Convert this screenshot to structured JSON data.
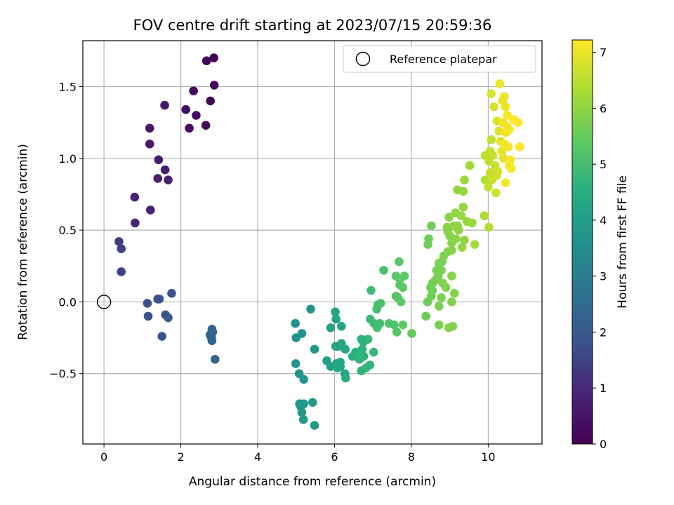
{
  "chart_data": {
    "type": "scatter",
    "title": "FOV centre drift starting at 2023/07/15 20:59:36",
    "xlabel": "Angular distance from reference (arcmin)",
    "ylabel": "Rotation from reference (arcmin)",
    "xlim": [
      -0.55,
      11.4
    ],
    "ylim": [
      -0.99,
      1.82
    ],
    "xticks": [
      0,
      2,
      4,
      6,
      8,
      10
    ],
    "xtick_labels": [
      "0",
      "2",
      "4",
      "6",
      "8",
      "10"
    ],
    "yticks": [
      -0.5,
      0.0,
      0.5,
      1.0,
      1.5
    ],
    "ytick_labels": [
      "−0.5",
      "0.0",
      "0.5",
      "1.0",
      "1.5"
    ],
    "grid": true,
    "legend": {
      "label": "Reference platepar",
      "placement": "top-right",
      "marker": "open-circle"
    },
    "reference_point": {
      "x": 0.0,
      "y": 0.0
    },
    "colorbar": {
      "label": "Hours from first FF file",
      "colormap": "viridis",
      "range": [
        0,
        7.22
      ],
      "ticks": [
        0,
        1,
        2,
        3,
        4,
        5,
        6,
        7
      ],
      "tick_labels": [
        "0",
        "1",
        "2",
        "3",
        "4",
        "5",
        "6",
        "7"
      ]
    },
    "points": [
      {
        "x": 2.67,
        "y": 1.68,
        "c": 0.05
      },
      {
        "x": 2.86,
        "y": 1.7,
        "c": 0.1
      },
      {
        "x": 2.87,
        "y": 1.51,
        "c": 0.15
      },
      {
        "x": 2.33,
        "y": 1.47,
        "c": 0.25
      },
      {
        "x": 2.77,
        "y": 1.4,
        "c": 0.2
      },
      {
        "x": 2.4,
        "y": 1.3,
        "c": 0.3
      },
      {
        "x": 2.13,
        "y": 1.34,
        "c": 0.3
      },
      {
        "x": 2.22,
        "y": 1.21,
        "c": 0.25
      },
      {
        "x": 2.65,
        "y": 1.23,
        "c": 0.2
      },
      {
        "x": 1.58,
        "y": 1.37,
        "c": 0.6
      },
      {
        "x": 1.19,
        "y": 1.21,
        "c": 0.6
      },
      {
        "x": 1.19,
        "y": 1.1,
        "c": 0.65
      },
      {
        "x": 1.42,
        "y": 0.99,
        "c": 0.7
      },
      {
        "x": 1.59,
        "y": 0.92,
        "c": 0.75
      },
      {
        "x": 1.4,
        "y": 0.86,
        "c": 0.75
      },
      {
        "x": 1.67,
        "y": 0.85,
        "c": 0.8
      },
      {
        "x": 0.8,
        "y": 0.73,
        "c": 0.85
      },
      {
        "x": 0.81,
        "y": 0.55,
        "c": 0.9
      },
      {
        "x": 1.21,
        "y": 0.64,
        "c": 0.9
      },
      {
        "x": 0.39,
        "y": 0.42,
        "c": 1.4
      },
      {
        "x": 0.45,
        "y": 0.37,
        "c": 1.45
      },
      {
        "x": 0.45,
        "y": 0.21,
        "c": 1.5
      },
      {
        "x": 1.13,
        "y": -0.01,
        "c": 1.8
      },
      {
        "x": 1.44,
        "y": 0.02,
        "c": 1.8
      },
      {
        "x": 1.4,
        "y": 0.02,
        "c": 1.85
      },
      {
        "x": 1.76,
        "y": 0.06,
        "c": 1.9
      },
      {
        "x": 1.15,
        "y": -0.1,
        "c": 1.85
      },
      {
        "x": 1.6,
        "y": -0.09,
        "c": 1.9
      },
      {
        "x": 1.67,
        "y": -0.11,
        "c": 1.95
      },
      {
        "x": 1.51,
        "y": -0.24,
        "c": 2.0
      },
      {
        "x": 2.81,
        "y": -0.19,
        "c": 2.2
      },
      {
        "x": 2.83,
        "y": -0.21,
        "c": 2.25
      },
      {
        "x": 2.76,
        "y": -0.23,
        "c": 2.3
      },
      {
        "x": 2.8,
        "y": -0.25,
        "c": 2.3
      },
      {
        "x": 2.81,
        "y": -0.27,
        "c": 2.35
      },
      {
        "x": 2.89,
        "y": -0.4,
        "c": 2.4
      },
      {
        "x": 4.98,
        "y": -0.15,
        "c": 3.6
      },
      {
        "x": 5.0,
        "y": -0.25,
        "c": 3.65
      },
      {
        "x": 5.15,
        "y": -0.22,
        "c": 3.65
      },
      {
        "x": 5.38,
        "y": -0.05,
        "c": 3.7
      },
      {
        "x": 5.48,
        "y": -0.33,
        "c": 3.75
      },
      {
        "x": 4.99,
        "y": -0.43,
        "c": 3.7
      },
      {
        "x": 5.08,
        "y": -0.5,
        "c": 3.75
      },
      {
        "x": 5.2,
        "y": -0.54,
        "c": 3.8
      },
      {
        "x": 5.09,
        "y": -0.71,
        "c": 3.8
      },
      {
        "x": 5.12,
        "y": -0.73,
        "c": 3.85
      },
      {
        "x": 5.2,
        "y": -0.71,
        "c": 3.85
      },
      {
        "x": 5.43,
        "y": -0.7,
        "c": 3.9
      },
      {
        "x": 5.15,
        "y": -0.77,
        "c": 3.85
      },
      {
        "x": 5.19,
        "y": -0.82,
        "c": 3.9
      },
      {
        "x": 5.48,
        "y": -0.86,
        "c": 3.9
      },
      {
        "x": 5.8,
        "y": -0.41,
        "c": 4.05
      },
      {
        "x": 5.9,
        "y": -0.45,
        "c": 4.05
      },
      {
        "x": 5.9,
        "y": -0.18,
        "c": 4.1
      },
      {
        "x": 6.02,
        "y": -0.07,
        "c": 4.15
      },
      {
        "x": 6.04,
        "y": -0.12,
        "c": 4.15
      },
      {
        "x": 6.03,
        "y": -0.31,
        "c": 4.2
      },
      {
        "x": 6.1,
        "y": -0.31,
        "c": 4.2
      },
      {
        "x": 6.18,
        "y": -0.29,
        "c": 4.25
      },
      {
        "x": 6.18,
        "y": -0.17,
        "c": 4.2
      },
      {
        "x": 6.28,
        "y": -0.33,
        "c": 4.25
      },
      {
        "x": 6.05,
        "y": -0.43,
        "c": 4.25
      },
      {
        "x": 6.15,
        "y": -0.42,
        "c": 4.3
      },
      {
        "x": 6.15,
        "y": -0.45,
        "c": 4.3
      },
      {
        "x": 6.08,
        "y": -0.46,
        "c": 4.3
      },
      {
        "x": 6.27,
        "y": -0.5,
        "c": 4.3
      },
      {
        "x": 6.29,
        "y": -0.53,
        "c": 4.35
      },
      {
        "x": 6.47,
        "y": -0.38,
        "c": 4.5
      },
      {
        "x": 6.55,
        "y": -0.35,
        "c": 4.55
      },
      {
        "x": 6.7,
        "y": -0.26,
        "c": 4.6
      },
      {
        "x": 6.75,
        "y": -0.28,
        "c": 4.6
      },
      {
        "x": 6.72,
        "y": -0.33,
        "c": 4.6
      },
      {
        "x": 6.67,
        "y": -0.36,
        "c": 4.65
      },
      {
        "x": 6.76,
        "y": -0.38,
        "c": 4.65
      },
      {
        "x": 6.65,
        "y": -0.4,
        "c": 4.7
      },
      {
        "x": 6.7,
        "y": -0.48,
        "c": 4.7
      },
      {
        "x": 6.82,
        "y": -0.46,
        "c": 4.75
      },
      {
        "x": 6.92,
        "y": -0.44,
        "c": 4.75
      },
      {
        "x": 6.87,
        "y": -0.26,
        "c": 4.75
      },
      {
        "x": 7.02,
        "y": -0.35,
        "c": 4.8
      },
      {
        "x": 6.93,
        "y": -0.12,
        "c": 4.9
      },
      {
        "x": 6.95,
        "y": 0.08,
        "c": 4.9
      },
      {
        "x": 7.03,
        "y": -0.15,
        "c": 4.95
      },
      {
        "x": 7.1,
        "y": -0.05,
        "c": 5.0
      },
      {
        "x": 7.13,
        "y": -0.02,
        "c": 5.0
      },
      {
        "x": 7.2,
        "y": -0.01,
        "c": 5.05
      },
      {
        "x": 7.11,
        "y": -0.18,
        "c": 5.0
      },
      {
        "x": 7.18,
        "y": -0.15,
        "c": 5.05
      },
      {
        "x": 7.28,
        "y": 0.22,
        "c": 5.1
      },
      {
        "x": 7.42,
        "y": -0.15,
        "c": 5.2
      },
      {
        "x": 7.55,
        "y": -0.16,
        "c": 5.2
      },
      {
        "x": 7.62,
        "y": -0.21,
        "c": 5.25
      },
      {
        "x": 7.6,
        "y": 0.04,
        "c": 5.3
      },
      {
        "x": 7.65,
        "y": 0.03,
        "c": 5.3
      },
      {
        "x": 7.7,
        "y": 0.12,
        "c": 5.3
      },
      {
        "x": 7.78,
        "y": 0.1,
        "c": 5.35
      },
      {
        "x": 7.6,
        "y": 0.18,
        "c": 5.3
      },
      {
        "x": 7.68,
        "y": 0.28,
        "c": 5.35
      },
      {
        "x": 7.82,
        "y": 0.18,
        "c": 5.4
      },
      {
        "x": 7.7,
        "y": 0.16,
        "c": 5.4
      },
      {
        "x": 7.73,
        "y": 0.0,
        "c": 5.4
      },
      {
        "x": 7.78,
        "y": -0.16,
        "c": 5.4
      },
      {
        "x": 8.01,
        "y": -0.22,
        "c": 5.5
      },
      {
        "x": 8.38,
        "y": -0.1,
        "c": 5.6
      },
      {
        "x": 8.42,
        "y": 0.0,
        "c": 5.6
      },
      {
        "x": 8.52,
        "y": 0.04,
        "c": 5.65
      },
      {
        "x": 8.5,
        "y": 0.1,
        "c": 5.65
      },
      {
        "x": 8.55,
        "y": 0.08,
        "c": 5.65
      },
      {
        "x": 8.55,
        "y": 0.13,
        "c": 5.7
      },
      {
        "x": 8.62,
        "y": 0.15,
        "c": 5.7
      },
      {
        "x": 8.66,
        "y": 0.22,
        "c": 5.7
      },
      {
        "x": 8.7,
        "y": 0.18,
        "c": 5.75
      },
      {
        "x": 8.78,
        "y": 0.22,
        "c": 5.75
      },
      {
        "x": 8.8,
        "y": 0.28,
        "c": 5.75
      },
      {
        "x": 8.72,
        "y": 0.27,
        "c": 5.75
      },
      {
        "x": 8.84,
        "y": 0.32,
        "c": 5.8
      },
      {
        "x": 8.95,
        "y": 0.35,
        "c": 5.8
      },
      {
        "x": 9.05,
        "y": 0.36,
        "c": 5.85
      },
      {
        "x": 9.05,
        "y": 0.41,
        "c": 5.85
      },
      {
        "x": 8.43,
        "y": 0.4,
        "c": 5.6
      },
      {
        "x": 8.45,
        "y": 0.44,
        "c": 5.6
      },
      {
        "x": 8.52,
        "y": 0.53,
        "c": 5.65
      },
      {
        "x": 8.78,
        "y": 0.03,
        "c": 5.75
      },
      {
        "x": 8.72,
        "y": -0.03,
        "c": 5.75
      },
      {
        "x": 8.72,
        "y": -0.16,
        "c": 5.75
      },
      {
        "x": 8.97,
        "y": -0.18,
        "c": 5.85
      },
      {
        "x": 9.08,
        "y": -0.17,
        "c": 5.85
      },
      {
        "x": 9.05,
        "y": 0.0,
        "c": 5.85
      },
      {
        "x": 9.12,
        "y": 0.06,
        "c": 5.9
      },
      {
        "x": 9.05,
        "y": 0.18,
        "c": 5.9
      },
      {
        "x": 8.82,
        "y": 0.13,
        "c": 5.85
      },
      {
        "x": 8.9,
        "y": 0.1,
        "c": 5.85
      },
      {
        "x": 9.16,
        "y": 0.44,
        "c": 5.95
      },
      {
        "x": 9.1,
        "y": 0.53,
        "c": 5.95
      },
      {
        "x": 9.2,
        "y": 0.53,
        "c": 6.0
      },
      {
        "x": 9.23,
        "y": 0.5,
        "c": 6.0
      },
      {
        "x": 9.15,
        "y": 0.62,
        "c": 6.0
      },
      {
        "x": 9.3,
        "y": 0.6,
        "c": 6.05
      },
      {
        "x": 9.35,
        "y": 0.66,
        "c": 6.05
      },
      {
        "x": 9.32,
        "y": 0.38,
        "c": 6.05
      },
      {
        "x": 9.38,
        "y": 0.43,
        "c": 6.05
      },
      {
        "x": 9.45,
        "y": 0.56,
        "c": 6.1
      },
      {
        "x": 9.58,
        "y": 0.55,
        "c": 6.1
      },
      {
        "x": 9.2,
        "y": 0.78,
        "c": 6.05
      },
      {
        "x": 9.35,
        "y": 0.77,
        "c": 6.1
      },
      {
        "x": 9.38,
        "y": 0.85,
        "c": 6.15
      },
      {
        "x": 9.52,
        "y": 0.95,
        "c": 6.2
      },
      {
        "x": 8.98,
        "y": 0.59,
        "c": 5.9
      },
      {
        "x": 8.93,
        "y": 0.52,
        "c": 5.9
      },
      {
        "x": 8.95,
        "y": 0.49,
        "c": 5.9
      },
      {
        "x": 9.0,
        "y": 0.46,
        "c": 5.9
      },
      {
        "x": 9.65,
        "y": 0.4,
        "c": 6.25
      },
      {
        "x": 9.9,
        "y": 0.6,
        "c": 6.35
      },
      {
        "x": 9.92,
        "y": 0.85,
        "c": 6.4
      },
      {
        "x": 10.02,
        "y": 0.52,
        "c": 6.4
      },
      {
        "x": 9.92,
        "y": 1.02,
        "c": 6.5
      },
      {
        "x": 10.02,
        "y": 0.98,
        "c": 6.55
      },
      {
        "x": 10.05,
        "y": 1.05,
        "c": 6.6
      },
      {
        "x": 10.08,
        "y": 1.13,
        "c": 6.6
      },
      {
        "x": 10.12,
        "y": 1.02,
        "c": 6.65
      },
      {
        "x": 10.05,
        "y": 0.9,
        "c": 6.6
      },
      {
        "x": 10.18,
        "y": 0.95,
        "c": 6.65
      },
      {
        "x": 10.1,
        "y": 0.85,
        "c": 6.65
      },
      {
        "x": 10.0,
        "y": 0.8,
        "c": 6.6
      },
      {
        "x": 10.2,
        "y": 0.76,
        "c": 6.7
      },
      {
        "x": 10.22,
        "y": 0.88,
        "c": 6.7
      },
      {
        "x": 10.25,
        "y": 0.91,
        "c": 6.75
      },
      {
        "x": 10.15,
        "y": 1.36,
        "c": 6.8
      },
      {
        "x": 10.08,
        "y": 1.45,
        "c": 6.8
      },
      {
        "x": 10.23,
        "y": 1.26,
        "c": 6.85
      },
      {
        "x": 10.28,
        "y": 1.19,
        "c": 6.9
      },
      {
        "x": 10.32,
        "y": 1.12,
        "c": 6.9
      },
      {
        "x": 10.35,
        "y": 1.05,
        "c": 6.95
      },
      {
        "x": 10.4,
        "y": 1.0,
        "c": 6.95
      },
      {
        "x": 10.37,
        "y": 1.4,
        "c": 7.0
      },
      {
        "x": 10.3,
        "y": 1.52,
        "c": 7.05
      },
      {
        "x": 10.42,
        "y": 1.43,
        "c": 7.05
      },
      {
        "x": 10.45,
        "y": 1.36,
        "c": 7.05
      },
      {
        "x": 10.38,
        "y": 1.25,
        "c": 7.05
      },
      {
        "x": 10.46,
        "y": 1.18,
        "c": 7.1
      },
      {
        "x": 10.5,
        "y": 1.22,
        "c": 7.1
      },
      {
        "x": 10.42,
        "y": 1.1,
        "c": 7.1
      },
      {
        "x": 10.52,
        "y": 1.08,
        "c": 7.1
      },
      {
        "x": 10.55,
        "y": 0.95,
        "c": 7.15
      },
      {
        "x": 10.6,
        "y": 0.93,
        "c": 7.15
      },
      {
        "x": 10.58,
        "y": 0.99,
        "c": 7.15
      },
      {
        "x": 10.45,
        "y": 0.83,
        "c": 7.1
      },
      {
        "x": 10.66,
        "y": 1.27,
        "c": 7.2
      },
      {
        "x": 10.78,
        "y": 1.25,
        "c": 7.2
      },
      {
        "x": 10.82,
        "y": 1.08,
        "c": 7.2
      },
      {
        "x": 10.5,
        "y": 1.3,
        "c": 7.15
      },
      {
        "x": 10.55,
        "y": 1.2,
        "c": 7.15
      }
    ]
  }
}
